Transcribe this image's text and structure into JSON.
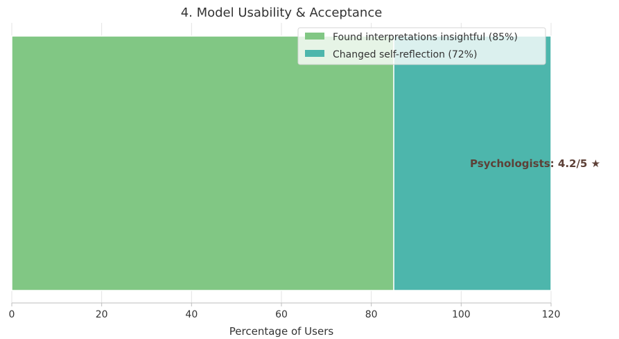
{
  "chart_data": {
    "type": "bar",
    "orientation": "horizontal",
    "stacked": true,
    "title": "4. Model Usability & Acceptance",
    "xlabel": "Percentage of Users",
    "ylabel": "",
    "xlim": [
      0,
      120
    ],
    "xticks": [
      0,
      20,
      40,
      60,
      80,
      100,
      120
    ],
    "grid": "vertical",
    "legend_position": "top-right",
    "series": [
      {
        "name": "Found interpretations insightful (85%)",
        "value": 85,
        "color": "#81c784"
      },
      {
        "name": "Changed self-reflection (72%)",
        "value": 72,
        "color": "#4db6ac"
      }
    ],
    "annotations": [
      {
        "text": "Psychologists: 4.2/5 ★",
        "color": "#5d4037"
      }
    ]
  }
}
